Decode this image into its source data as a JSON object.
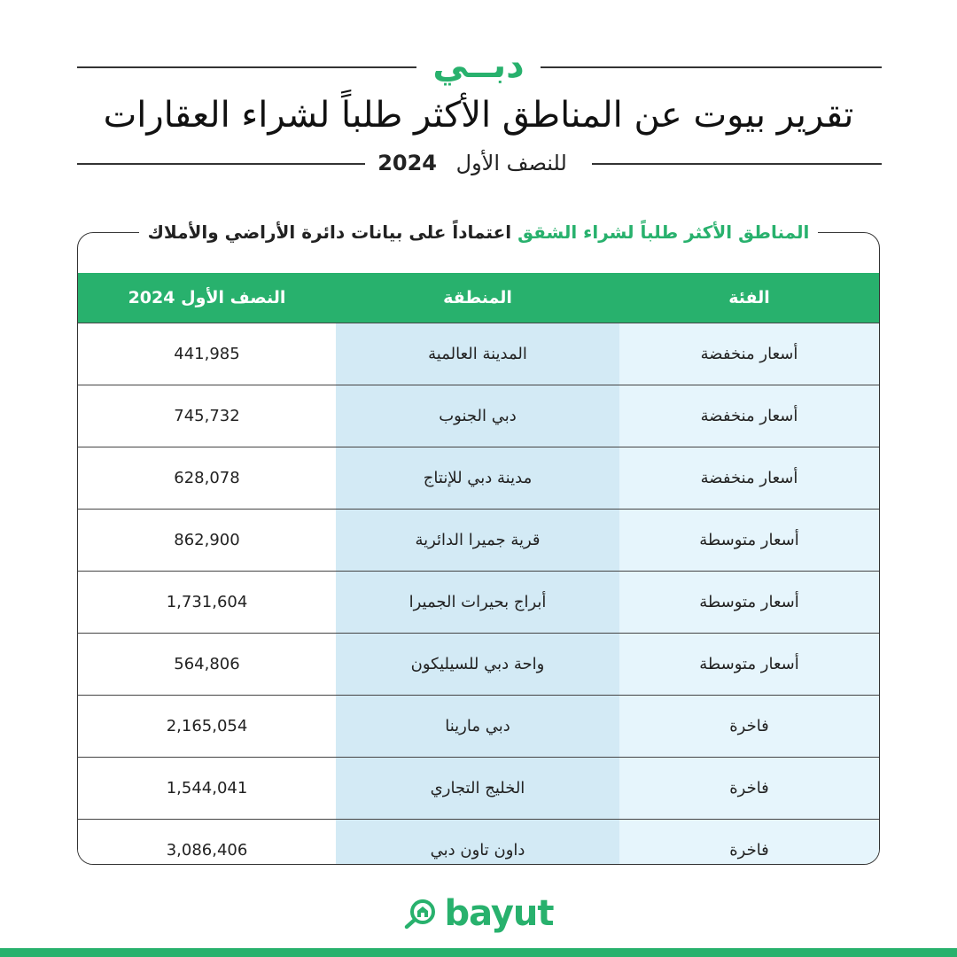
{
  "header": {
    "city": "دبــي",
    "title": "تقرير بيوت عن المناطق الأكثر طلباً لشراء العقارات",
    "subtitle_text": "للنصف الأول",
    "subtitle_year": "2024"
  },
  "caption": {
    "highlight": "المناطق الأكثر طلباً لشراء الشقق",
    "rest": "اعتماداً على بيانات دائرة الأراضي والأملاك"
  },
  "table": {
    "columns": [
      "الفئة",
      "المنطقة",
      "النصف الأول 2024"
    ],
    "rows": [
      {
        "category": "أسعار منخفضة",
        "area": "المدينة العالمية",
        "value": "441,985"
      },
      {
        "category": "أسعار منخفضة",
        "area": "دبي الجنوب",
        "value": "745,732"
      },
      {
        "category": "أسعار منخفضة",
        "area": "مدينة دبي للإنتاج",
        "value": "628,078"
      },
      {
        "category": "أسعار متوسطة",
        "area": "قرية جميرا الدائرية",
        "value": "862,900"
      },
      {
        "category": "أسعار متوسطة",
        "area": "أبراج بحيرات الجميرا",
        "value": "1,731,604"
      },
      {
        "category": "أسعار متوسطة",
        "area": "واحة دبي للسيليكون",
        "value": "564,806"
      },
      {
        "category": "فاخرة",
        "area": "دبي مارينا",
        "value": "2,165,054"
      },
      {
        "category": "فاخرة",
        "area": "الخليج التجاري",
        "value": "1,544,041"
      },
      {
        "category": "فاخرة",
        "area": "داون تاون دبي",
        "value": "3,086,406"
      }
    ]
  },
  "logo": {
    "text": "bayut",
    "icon": "house-magnifier-icon"
  },
  "colors": {
    "brand_green": "#28b16d",
    "category_bg": "#e6f5fc",
    "area_bg": "#d3eaf5"
  }
}
